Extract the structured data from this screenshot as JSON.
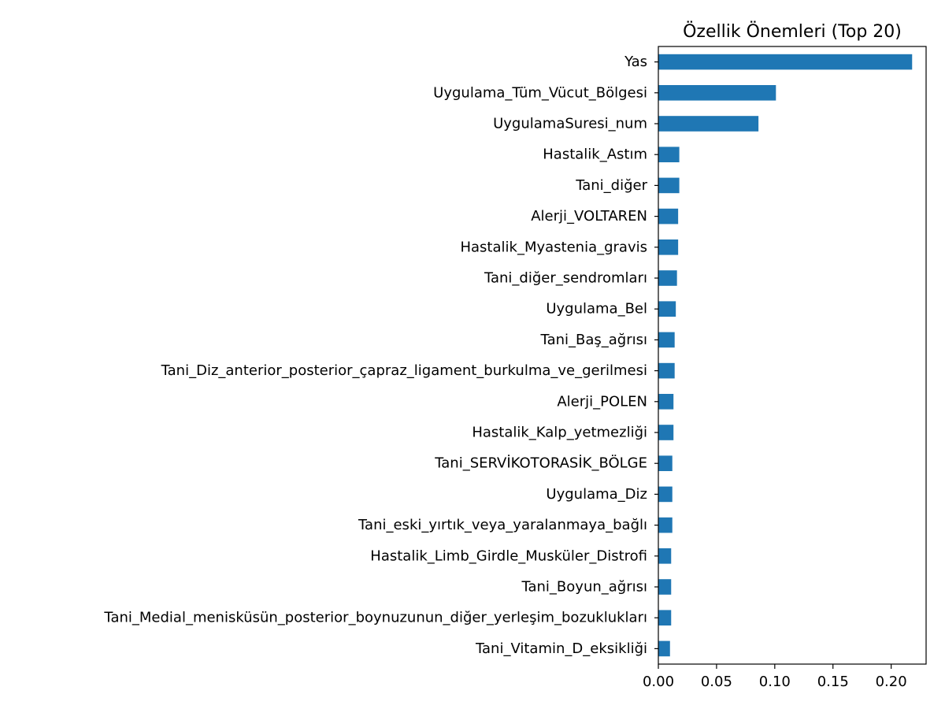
{
  "chart_data": {
    "type": "bar",
    "orientation": "horizontal",
    "title": "Özellik Önemleri (Top 20)",
    "xlabel": "",
    "ylabel": "",
    "xlim": [
      0,
      0.23
    ],
    "x_ticks": [
      "0.00",
      "0.05",
      "0.10",
      "0.15",
      "0.20"
    ],
    "grid": false,
    "bar_color": "#1f77b4",
    "categories": [
      "Yas",
      "Uygulama_Tüm_Vücut_Bölgesi",
      "UygulamaSuresi_num",
      "Hastalik_Astım",
      "Tani_diğer",
      "Alerji_VOLTAREN",
      "Hastalik_Myastenia_gravis",
      "Tani_diğer_sendromları",
      "Uygulama_Bel",
      "Tani_Baş_ağrısı",
      "Tani_Diz_anterior_posterior_çapraz_ligament_burkulma_ve_gerilmesi",
      "Alerji_POLEN",
      "Hastalik_Kalp_yetmezliği",
      "Tani_SERVİKOTORASİK_BÖLGE",
      "Uygulama_Diz",
      "Tani_eski_yırtık_veya_yaralanmaya_bağlı",
      "Hastalik_Limb_Girdle_Musküler_Distrofi",
      "Tani_Boyun_ağrısı",
      "Tani_Medial_menisküsün_posterior_boynuzunun_diğer_yerleşim_bozuklukları",
      "Tani_Vitamin_D_eksikliği"
    ],
    "values": [
      0.218,
      0.101,
      0.086,
      0.018,
      0.018,
      0.017,
      0.017,
      0.016,
      0.015,
      0.014,
      0.014,
      0.013,
      0.013,
      0.012,
      0.012,
      0.012,
      0.011,
      0.011,
      0.011,
      0.01
    ]
  }
}
